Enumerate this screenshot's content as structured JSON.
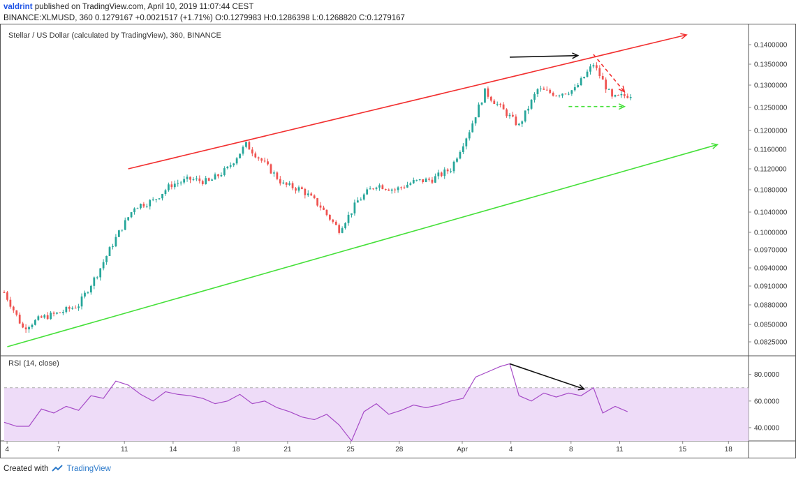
{
  "header": {
    "author": "valdrint",
    "published_text": "published on TradingView.com, April 10, 2019 11:07:44 CEST",
    "symbol": "BINANCE:XLMUSD, 360",
    "last": "0.1279167",
    "change": "+0.0021517 (+1.71%)",
    "o_label": "O:",
    "o_value": "0.1279983",
    "h_label": "H:",
    "h_value": "0.1286398",
    "l_label": "L:",
    "l_value": "0.1268820",
    "c_label": "C:",
    "c_value": "0.1279167"
  },
  "footer": {
    "created_with": "Created with",
    "brand": "TradingView"
  },
  "colors": {
    "up": "#26a69a",
    "down": "#ef5350",
    "resistance": "#f23030",
    "support": "#46e03a",
    "rsi_line": "#a64bc7",
    "rsi_band": "#eedcf8",
    "arrow": "#111111",
    "axis": "#888888"
  },
  "chart_data": [
    {
      "type": "candlestick",
      "title": "Stellar / US Dollar (calculated by TradingView), 360, BINANCE",
      "y_ticks": [
        "0.1400000",
        "0.1350000",
        "0.1300000",
        "0.1250000",
        "0.1200000",
        "0.1160000",
        "0.1120000",
        "0.1080000",
        "0.1040000",
        "0.1000000",
        "0.0970000",
        "0.0940000",
        "0.0910000",
        "0.0880000",
        "0.0850000",
        "0.0825000"
      ],
      "x_ticks": [
        "4",
        "7",
        "11",
        "14",
        "18",
        "21",
        "25",
        "28",
        "Apr",
        "4",
        "8",
        "11",
        "15",
        "18"
      ],
      "close_path": [
        {
          "x": 0,
          "y": 0.09
        },
        {
          "x": 6,
          "y": 0.0845
        },
        {
          "x": 12,
          "y": 0.086
        },
        {
          "x": 18,
          "y": 0.0868
        },
        {
          "x": 24,
          "y": 0.088
        },
        {
          "x": 30,
          "y": 0.093
        },
        {
          "x": 36,
          "y": 0.099
        },
        {
          "x": 42,
          "y": 0.105
        },
        {
          "x": 48,
          "y": 0.106
        },
        {
          "x": 54,
          "y": 0.109
        },
        {
          "x": 60,
          "y": 0.11
        },
        {
          "x": 66,
          "y": 0.1095
        },
        {
          "x": 72,
          "y": 0.112
        },
        {
          "x": 78,
          "y": 0.117
        },
        {
          "x": 84,
          "y": 0.113
        },
        {
          "x": 90,
          "y": 0.109
        },
        {
          "x": 96,
          "y": 0.108
        },
        {
          "x": 102,
          "y": 0.105
        },
        {
          "x": 108,
          "y": 0.1005
        },
        {
          "x": 114,
          "y": 0.106
        },
        {
          "x": 120,
          "y": 0.109
        },
        {
          "x": 126,
          "y": 0.108
        },
        {
          "x": 132,
          "y": 0.1095
        },
        {
          "x": 138,
          "y": 0.11
        },
        {
          "x": 144,
          "y": 0.112
        },
        {
          "x": 150,
          "y": 0.12
        },
        {
          "x": 155,
          "y": 0.1285
        },
        {
          "x": 160,
          "y": 0.125
        },
        {
          "x": 166,
          "y": 0.121
        },
        {
          "x": 172,
          "y": 0.129
        },
        {
          "x": 178,
          "y": 0.128
        },
        {
          "x": 184,
          "y": 0.129
        },
        {
          "x": 190,
          "y": 0.135
        },
        {
          "x": 196,
          "y": 0.127
        },
        {
          "x": 202,
          "y": 0.1279
        }
      ],
      "resistance_line": {
        "x0": 40,
        "y0": 0.112,
        "x1": 220,
        "y1": 0.1425
      },
      "support_line": {
        "x0": 1,
        "y0": 0.0818,
        "x1": 230,
        "y1": 0.117
      },
      "triangle_top": {
        "x0": 190,
        "y0": 0.1375,
        "x1": 200,
        "y1": 0.1285
      },
      "triangle_base": {
        "x0": 182,
        "y0": 0.1252,
        "x1": 200,
        "y1": 0.1252
      },
      "top_arrow": {
        "x0": 163,
        "y0": 0.1368,
        "x1": 185,
        "y1": 0.1372
      }
    },
    {
      "type": "line",
      "title": "RSI (14, close)",
      "y_ticks": [
        "80.0000",
        "60.0000",
        "40.0000"
      ],
      "ylim": [
        30,
        94
      ],
      "band": [
        30,
        70
      ],
      "values": [
        {
          "x": 0,
          "y": 44
        },
        {
          "x": 4,
          "y": 41
        },
        {
          "x": 8,
          "y": 41
        },
        {
          "x": 12,
          "y": 54
        },
        {
          "x": 16,
          "y": 51
        },
        {
          "x": 20,
          "y": 56
        },
        {
          "x": 24,
          "y": 53
        },
        {
          "x": 28,
          "y": 64
        },
        {
          "x": 32,
          "y": 62
        },
        {
          "x": 36,
          "y": 75
        },
        {
          "x": 40,
          "y": 72
        },
        {
          "x": 44,
          "y": 65
        },
        {
          "x": 48,
          "y": 60
        },
        {
          "x": 52,
          "y": 67
        },
        {
          "x": 56,
          "y": 65
        },
        {
          "x": 60,
          "y": 64
        },
        {
          "x": 64,
          "y": 62
        },
        {
          "x": 68,
          "y": 58
        },
        {
          "x": 72,
          "y": 60
        },
        {
          "x": 76,
          "y": 65
        },
        {
          "x": 80,
          "y": 58
        },
        {
          "x": 84,
          "y": 60
        },
        {
          "x": 88,
          "y": 55
        },
        {
          "x": 92,
          "y": 52
        },
        {
          "x": 96,
          "y": 48
        },
        {
          "x": 100,
          "y": 46
        },
        {
          "x": 104,
          "y": 50
        },
        {
          "x": 108,
          "y": 42
        },
        {
          "x": 112,
          "y": 30
        },
        {
          "x": 116,
          "y": 52
        },
        {
          "x": 120,
          "y": 58
        },
        {
          "x": 124,
          "y": 50
        },
        {
          "x": 128,
          "y": 53
        },
        {
          "x": 132,
          "y": 57
        },
        {
          "x": 136,
          "y": 55
        },
        {
          "x": 140,
          "y": 57
        },
        {
          "x": 144,
          "y": 60
        },
        {
          "x": 148,
          "y": 62
        },
        {
          "x": 152,
          "y": 78
        },
        {
          "x": 156,
          "y": 82
        },
        {
          "x": 160,
          "y": 86
        },
        {
          "x": 163,
          "y": 88
        },
        {
          "x": 166,
          "y": 64
        },
        {
          "x": 170,
          "y": 60
        },
        {
          "x": 174,
          "y": 66
        },
        {
          "x": 178,
          "y": 63
        },
        {
          "x": 182,
          "y": 66
        },
        {
          "x": 186,
          "y": 64
        },
        {
          "x": 190,
          "y": 70
        },
        {
          "x": 193,
          "y": 51
        },
        {
          "x": 197,
          "y": 56
        },
        {
          "x": 201,
          "y": 52
        }
      ],
      "divergence_arrow": {
        "x0": 163,
        "y0": 88,
        "x1": 187,
        "y1": 69
      }
    }
  ]
}
